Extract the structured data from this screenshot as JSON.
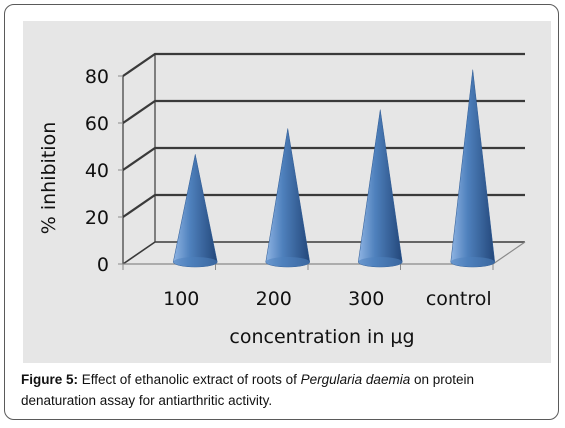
{
  "chart_data": {
    "type": "bar",
    "bar_shape": "cone",
    "categories": [
      "100",
      "200",
      "300",
      "control"
    ],
    "values": [
      42,
      53,
      61,
      78
    ],
    "title": "",
    "xlabel": "concentration in μg",
    "ylabel": "% inhibition",
    "ylim": [
      0,
      80
    ],
    "yticks": [
      "0",
      "20",
      "40",
      "60",
      "80"
    ],
    "grid": true,
    "legend": "none",
    "colors": {
      "plot_background": "#e6e6e6",
      "cone_light": "#8fb4e3",
      "cone_mid": "#4f81bd",
      "cone_dark": "#23477a",
      "gridline": "#3a3a3a"
    }
  },
  "caption": {
    "label": "Figure 5:",
    "text_before": " Effect of ethanolic extract of roots of ",
    "species": "Pergularia daemia",
    "text_after": " on protein denaturation assay for antiarthritic activity."
  }
}
